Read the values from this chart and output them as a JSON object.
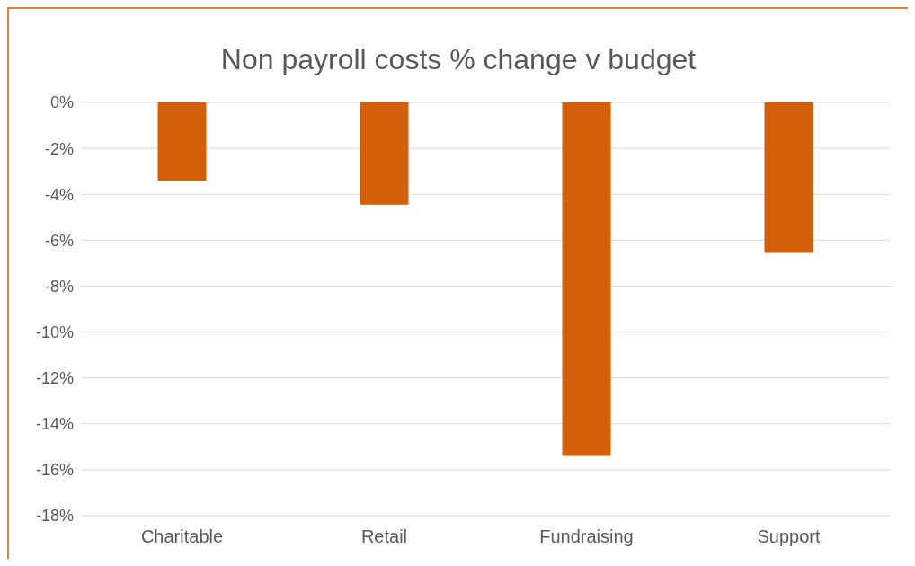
{
  "chart_data": {
    "type": "bar",
    "title": "Non payroll costs % change v budget",
    "categories": [
      "Charitable",
      "Retail",
      "Fundraising",
      "Support"
    ],
    "values": [
      -3.4,
      -4.45,
      -15.4,
      -6.55
    ],
    "color": "#d35f0a",
    "ylim": [
      -18,
      0
    ],
    "yticks": [
      {
        "value": 0,
        "label": "0%"
      },
      {
        "value": -2,
        "label": "-2%"
      },
      {
        "value": -4,
        "label": "-4%"
      },
      {
        "value": -6,
        "label": "-6%"
      },
      {
        "value": -8,
        "label": "-8%"
      },
      {
        "value": -10,
        "label": "-10%"
      },
      {
        "value": -12,
        "label": "-12%"
      },
      {
        "value": -14,
        "label": "-14%"
      },
      {
        "value": -16,
        "label": "-16%"
      },
      {
        "value": -18,
        "label": "-18%"
      }
    ],
    "grid": "y"
  }
}
